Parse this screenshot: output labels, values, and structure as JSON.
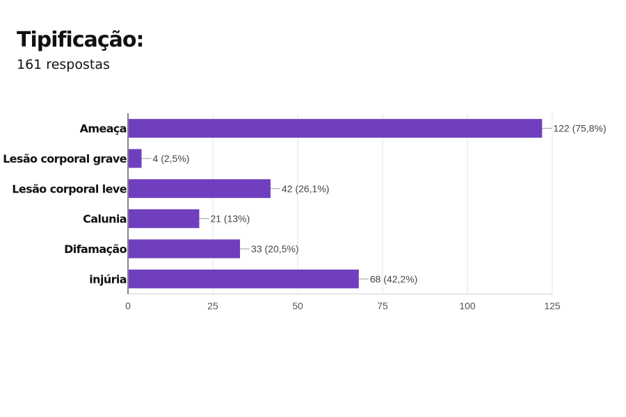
{
  "header": {
    "title": "Tipificação:",
    "subtitle": "161 respostas"
  },
  "colors": {
    "bar": "#6f3fbf",
    "grid": "#e3e3e3",
    "axis": "#333333",
    "leader": "#999999"
  },
  "chart_data": {
    "type": "bar",
    "orientation": "horizontal",
    "title": "Tipificação:",
    "subtitle": "161 respostas",
    "categories": [
      "Ameaça",
      "Lesão corporal grave",
      "Lesão corporal leve",
      "Calunia",
      "Difamação",
      "injúria"
    ],
    "values": [
      122,
      4,
      42,
      21,
      33,
      68
    ],
    "data_labels": [
      "122 (75,8%)",
      "4 (2,5%)",
      "42 (26,1%)",
      "21 (13%)",
      "33 (20,5%)",
      "68 (42,2%)"
    ],
    "xlim": [
      0,
      125
    ],
    "xticks": [
      0,
      25,
      50,
      75,
      100,
      125
    ],
    "grid": true,
    "legend": "none"
  }
}
